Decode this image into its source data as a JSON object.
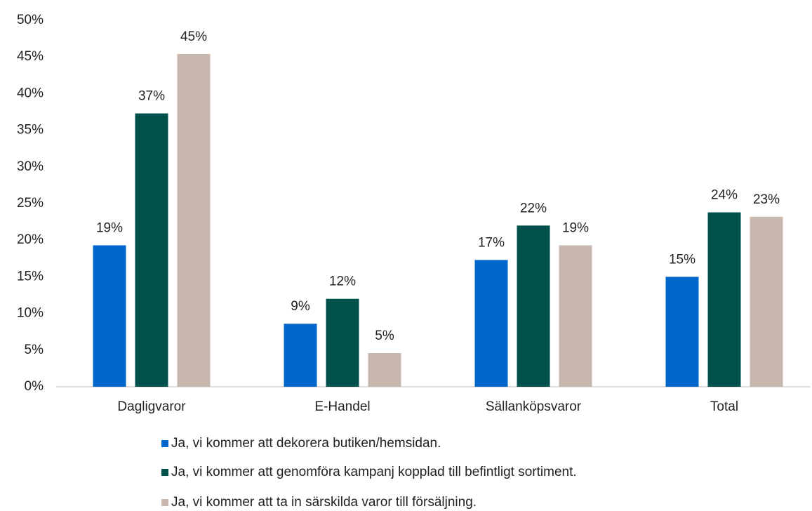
{
  "chart_data": {
    "type": "bar",
    "categories": [
      "Dagligvaror",
      "E-Handel",
      "Sällanköpsvaror",
      "Total"
    ],
    "series": [
      {
        "name": "Ja, vi kommer att dekorera butiken/hemsidan.",
        "color": "#0066cc",
        "values": [
          19.3,
          8.6,
          17.3,
          15.0
        ],
        "value_labels": [
          "19%",
          "9%",
          "17%",
          "15%"
        ]
      },
      {
        "name": "Ja, vi kommer att genomföra kampanj kopplad till befintligt sortiment.",
        "color": "#00504b",
        "values": [
          37.3,
          12.0,
          22.0,
          23.8
        ],
        "value_labels": [
          "37%",
          "12%",
          "22%",
          "24%"
        ]
      },
      {
        "name": "Ja, vi kommer att ta in särskilda varor till försäljning.",
        "color": "#c8b8ae",
        "values": [
          45.4,
          4.6,
          19.3,
          23.2
        ],
        "value_labels": [
          "45%",
          "5%",
          "19%",
          "23%"
        ]
      }
    ],
    "ylim": [
      0,
      50
    ],
    "yticks": [
      {
        "value": 0,
        "label": "0%"
      },
      {
        "value": 5,
        "label": "5%"
      },
      {
        "value": 10,
        "label": "10%"
      },
      {
        "value": 15,
        "label": "15%"
      },
      {
        "value": 20,
        "label": "20%"
      },
      {
        "value": 25,
        "label": "25%"
      },
      {
        "value": 30,
        "label": "30%"
      },
      {
        "value": 35,
        "label": "35%"
      },
      {
        "value": 40,
        "label": "40%"
      },
      {
        "value": 45,
        "label": "45%"
      },
      {
        "value": 50,
        "label": "50%"
      }
    ],
    "grid": false
  }
}
